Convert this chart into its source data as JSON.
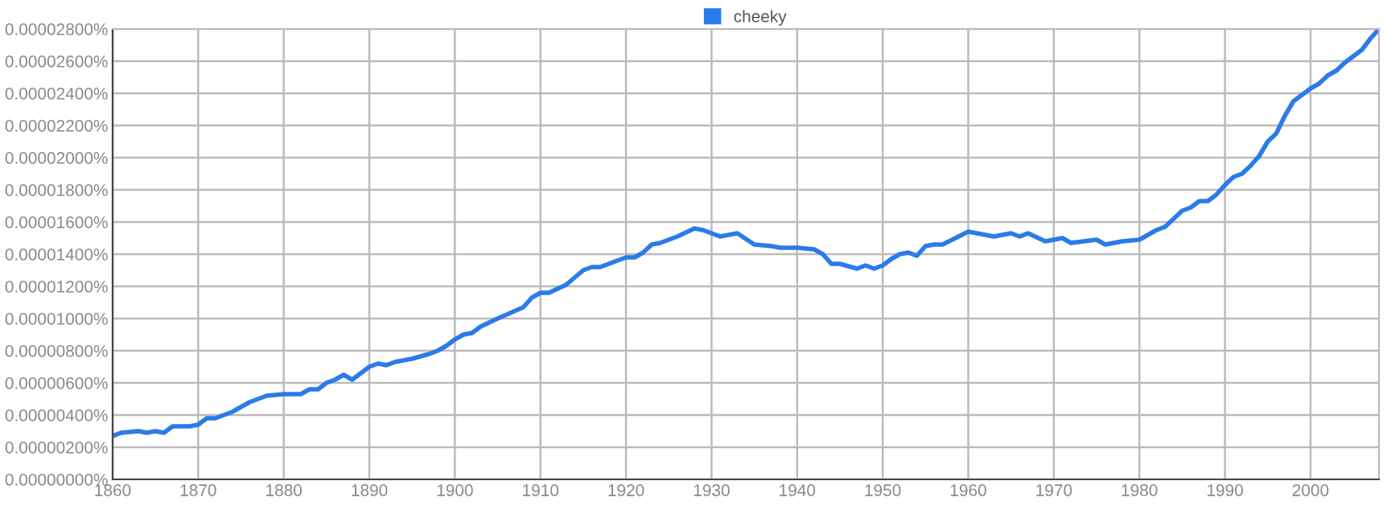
{
  "chart_data": {
    "type": "line",
    "legend": "top",
    "grid": true,
    "marker": "none",
    "line_style": "solid",
    "x": [
      1860,
      1861,
      1863,
      1864,
      1865,
      1866,
      1867,
      1869,
      1870,
      1871,
      1872,
      1874,
      1876,
      1878,
      1880,
      1882,
      1883,
      1884,
      1885,
      1886,
      1887,
      1888,
      1889,
      1890,
      1891,
      1892,
      1893,
      1895,
      1897,
      1898,
      1899,
      1900,
      1901,
      1902,
      1903,
      1905,
      1908,
      1909,
      1910,
      1911,
      1913,
      1915,
      1916,
      1917,
      1919,
      1920,
      1921,
      1922,
      1923,
      1924,
      1926,
      1928,
      1929,
      1931,
      1933,
      1935,
      1937,
      1938,
      1940,
      1942,
      1943,
      1944,
      1945,
      1947,
      1948,
      1949,
      1950,
      1951,
      1952,
      1953,
      1954,
      1955,
      1956,
      1957,
      1960,
      1963,
      1965,
      1966,
      1967,
      1969,
      1971,
      1972,
      1975,
      1976,
      1978,
      1980,
      1982,
      1983,
      1984,
      1985,
      1986,
      1987,
      1988,
      1989,
      1990,
      1991,
      1992,
      1993,
      1994,
      1995,
      1996,
      1997,
      1998,
      1999,
      2000,
      2001,
      2002,
      2003,
      2004,
      2005,
      2006,
      2007,
      2008
    ],
    "series": [
      {
        "name": "cheeky",
        "color": "#2b7be9",
        "values": [
          2.7e-06,
          2.9e-06,
          3e-06,
          2.9e-06,
          3e-06,
          2.9e-06,
          3.3e-06,
          3.3e-06,
          3.4e-06,
          3.8e-06,
          3.8e-06,
          4.2e-06,
          4.8e-06,
          5.2e-06,
          5.3e-06,
          5.3e-06,
          5.6e-06,
          5.6e-06,
          6e-06,
          6.2e-06,
          6.5e-06,
          6.2e-06,
          6.6e-06,
          7e-06,
          7.2e-06,
          7.1e-06,
          7.3e-06,
          7.5e-06,
          7.8e-06,
          8e-06,
          8.3e-06,
          8.7e-06,
          9e-06,
          9.1e-06,
          9.5e-06,
          1e-05,
          1.07e-05,
          1.13e-05,
          1.16e-05,
          1.16e-05,
          1.21e-05,
          1.3e-05,
          1.32e-05,
          1.32e-05,
          1.36e-05,
          1.38e-05,
          1.38e-05,
          1.41e-05,
          1.46e-05,
          1.47e-05,
          1.51e-05,
          1.56e-05,
          1.55e-05,
          1.51e-05,
          1.53e-05,
          1.46e-05,
          1.45e-05,
          1.44e-05,
          1.44e-05,
          1.43e-05,
          1.4e-05,
          1.34e-05,
          1.34e-05,
          1.31e-05,
          1.33e-05,
          1.31e-05,
          1.33e-05,
          1.37e-05,
          1.4e-05,
          1.41e-05,
          1.39e-05,
          1.45e-05,
          1.46e-05,
          1.46e-05,
          1.54e-05,
          1.51e-05,
          1.53e-05,
          1.51e-05,
          1.53e-05,
          1.48e-05,
          1.5e-05,
          1.47e-05,
          1.49e-05,
          1.46e-05,
          1.48e-05,
          1.49e-05,
          1.55e-05,
          1.57e-05,
          1.62e-05,
          1.67e-05,
          1.69e-05,
          1.73e-05,
          1.73e-05,
          1.77e-05,
          1.83e-05,
          1.88e-05,
          1.9e-05,
          1.95e-05,
          2.01e-05,
          2.1e-05,
          2.15e-05,
          2.26e-05,
          2.35e-05,
          2.39e-05,
          2.43e-05,
          2.46e-05,
          2.51e-05,
          2.54e-05,
          2.59e-05,
          2.63e-05,
          2.67e-05,
          2.74e-05,
          2.8e-05
        ]
      }
    ],
    "xlim": [
      1860,
      2008
    ],
    "xticks": [
      1860,
      1870,
      1880,
      1890,
      1900,
      1910,
      1920,
      1930,
      1940,
      1950,
      1960,
      1970,
      1980,
      1990,
      2000
    ],
    "ylim": [
      0,
      2.8e-05
    ],
    "yticks": [
      {
        "value": 0,
        "label": "0.00000000%"
      },
      {
        "value": 2e-06,
        "label": "0.00000200%"
      },
      {
        "value": 4e-06,
        "label": "0.00000400%"
      },
      {
        "value": 6e-06,
        "label": "0.00000600%"
      },
      {
        "value": 8e-06,
        "label": "0.00000800%"
      },
      {
        "value": 1e-05,
        "label": "0.00001000%"
      },
      {
        "value": 1.2e-05,
        "label": "0.00001200%"
      },
      {
        "value": 1.4e-05,
        "label": "0.00001400%"
      },
      {
        "value": 1.6e-05,
        "label": "0.00001600%"
      },
      {
        "value": 1.8e-05,
        "label": "0.00001800%"
      },
      {
        "value": 2e-05,
        "label": "0.00002000%"
      },
      {
        "value": 2.2e-05,
        "label": "0.00002200%"
      },
      {
        "value": 2.4e-05,
        "label": "0.00002400%"
      },
      {
        "value": 2.6e-05,
        "label": "0.00002600%"
      },
      {
        "value": 2.8e-05,
        "label": "0.00002800%"
      }
    ]
  }
}
